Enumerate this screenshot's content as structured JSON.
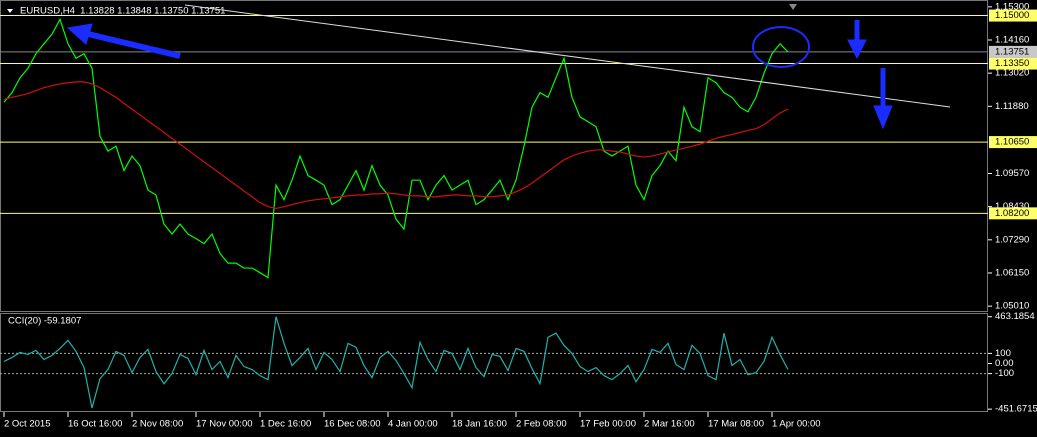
{
  "chart_data": [
    {
      "type": "line",
      "title": "EURUSD,H4  1.13828 1.13848 1.13750 1.13751",
      "categories": [
        "2 Oct 2015",
        null,
        null,
        null,
        null,
        null,
        null,
        null,
        "16 Oct 16:00",
        null,
        null,
        null,
        null,
        null,
        null,
        null,
        "2 Nov 08:00",
        null,
        null,
        null,
        null,
        null,
        null,
        null,
        "17 Nov 00:00",
        null,
        null,
        null,
        null,
        null,
        null,
        null,
        "1 Dec 16:00",
        null,
        null,
        null,
        null,
        null,
        null,
        null,
        "16 Dec 08:00",
        null,
        null,
        null,
        null,
        null,
        null,
        null,
        "4 Jan 00:00",
        null,
        null,
        null,
        null,
        null,
        null,
        null,
        "18 Jan 16:00",
        null,
        null,
        null,
        null,
        null,
        null,
        null,
        "2 Feb 08:00",
        null,
        null,
        null,
        null,
        null,
        null,
        null,
        "17 Feb 00:00",
        null,
        null,
        null,
        null,
        null,
        null,
        null,
        "2 Mar 16:00",
        null,
        null,
        null,
        null,
        null,
        null,
        null,
        "17 Mar 08:00",
        null,
        null,
        null,
        null,
        null,
        null,
        null,
        "1 Apr 00:00",
        null,
        null
      ],
      "series": [
        {
          "color": "#00ff00",
          "values": [
            1.1202,
            1.1235,
            1.1286,
            1.1319,
            1.1369,
            1.1403,
            1.1436,
            1.1487,
            1.1403,
            1.1353,
            1.1369,
            1.1319,
            1.1085,
            1.1034,
            1.1051,
            1.0967,
            1.1017,
            1.0984,
            1.09,
            1.0883,
            1.0783,
            1.0749,
            1.0783,
            1.0749,
            1.0733,
            1.0716,
            1.0749,
            1.0682,
            1.0649,
            1.0649,
            1.0632,
            1.0632,
            1.0616,
            1.0599,
            1.0917,
            1.0867,
            1.0934,
            1.1017,
            1.095,
            1.0934,
            1.0917,
            1.085,
            1.0867,
            1.0917,
            1.0967,
            1.09,
            1.0984,
            1.0917,
            1.0883,
            1.08,
            1.0766,
            1.0934,
            1.0934,
            1.0867,
            1.0917,
            1.095,
            1.09,
            1.0917,
            1.0934,
            1.085,
            1.0867,
            1.09,
            1.0934,
            1.0867,
            1.0934,
            1.1051,
            1.1185,
            1.1235,
            1.1219,
            1.1286,
            1.1353,
            1.1219,
            1.1152,
            1.1135,
            1.1118,
            1.1034,
            1.1017,
            1.1034,
            1.1051,
            1.0917,
            1.0867,
            1.095,
            1.0984,
            1.1034,
            1.1001,
            1.1185,
            1.1118,
            1.1101,
            1.1286,
            1.1269,
            1.1235,
            1.1219,
            1.1185,
            1.1169,
            1.1219,
            1.1302,
            1.1369,
            1.1403,
            1.1375
          ]
        },
        {
          "color": "#d01010",
          "values": [
            1.1212,
            1.1219,
            1.1225,
            1.1232,
            1.1242,
            1.1252,
            1.1259,
            1.1265,
            1.1269,
            1.1272,
            1.1272,
            1.1265,
            1.1252,
            1.1235,
            1.1219,
            1.1198,
            1.1178,
            1.1158,
            1.1138,
            1.1118,
            1.1098,
            1.1078,
            1.1058,
            1.1038,
            1.1017,
            1.0997,
            1.0977,
            1.0957,
            1.0937,
            1.0917,
            1.0897,
            1.0877,
            1.0857,
            1.0843,
            1.0837,
            1.0843,
            1.085,
            1.0857,
            1.0863,
            1.0867,
            1.087,
            1.0873,
            1.0877,
            1.088,
            1.0883,
            1.0883,
            1.0887,
            1.0887,
            1.089,
            1.0887,
            1.0883,
            1.088,
            1.088,
            1.0877,
            1.0877,
            1.088,
            1.0883,
            1.0883,
            1.088,
            1.088,
            1.0877,
            1.0877,
            1.088,
            1.0883,
            1.0894,
            1.0907,
            1.0924,
            1.0944,
            1.0964,
            1.0984,
            1.1004,
            1.1017,
            1.1027,
            1.1034,
            1.1038,
            1.1038,
            1.1034,
            1.1031,
            1.1024,
            1.1017,
            1.1014,
            1.1017,
            1.1024,
            1.1031,
            1.1038,
            1.1044,
            1.1051,
            1.1058,
            1.1068,
            1.1078,
            1.1085,
            1.1091,
            1.1098,
            1.1105,
            1.1111,
            1.1125,
            1.1145,
            1.1165,
            1.1178
          ]
        }
      ],
      "ylim": [
        1.04843,
        1.15535
      ],
      "yticks": [
        {
          "value": 1.153,
          "label": "1.15300"
        },
        {
          "value": 1.1416,
          "label": "1.14160"
        },
        {
          "value": 1.1302,
          "label": "1.13020"
        },
        {
          "value": 1.1188,
          "label": "1.11880"
        },
        {
          "value": 1.0957,
          "label": "1.09570"
        },
        {
          "value": 1.0843,
          "label": "1.08430"
        },
        {
          "value": 1.0729,
          "label": "1.07290"
        },
        {
          "value": 1.0615,
          "label": "1.06150"
        },
        {
          "value": 1.0501,
          "label": "1.05010"
        }
      ],
      "levels": [
        {
          "value": 1.15,
          "label": "1.15000"
        },
        {
          "value": 1.1335,
          "label": "1.13350"
        },
        {
          "value": 1.1065,
          "label": "1.10650"
        },
        {
          "value": 1.082,
          "label": "1.08200"
        }
      ],
      "level_color": "#ffff66",
      "last_price": {
        "value": 1.13751,
        "label": "1.13751"
      }
    },
    {
      "type": "line",
      "title": "CCI(20) -59.1807",
      "series": [
        {
          "color": "#20b2aa",
          "values": [
            20,
            60,
            110,
            90,
            130,
            40,
            80,
            150,
            230,
            120,
            -40,
            -440,
            -150,
            -60,
            120,
            80,
            -90,
            60,
            140,
            -80,
            -200,
            -100,
            90,
            50,
            -110,
            130,
            -60,
            20,
            -140,
            80,
            -30,
            -60,
            -120,
            -160,
            463,
            200,
            -20,
            60,
            150,
            -60,
            110,
            40,
            -80,
            200,
            160,
            -20,
            -140,
            60,
            120,
            30,
            -100,
            -240,
            210,
            40,
            -80,
            130,
            100,
            -60,
            150,
            -40,
            -130,
            90,
            70,
            -70,
            150,
            120,
            -50,
            -200,
            260,
            300,
            180,
            100,
            -30,
            -80,
            -40,
            -120,
            -160,
            -100,
            -20,
            -180,
            -60,
            140,
            110,
            200,
            -10,
            -60,
            180,
            100,
            -120,
            -160,
            300,
            -20,
            40,
            -110,
            -90,
            20,
            260,
            90,
            -59.1807
          ]
        }
      ],
      "ylim": [
        -480,
        500
      ],
      "yticks": [
        463.1854,
        100,
        {
          "value": 0,
          "label": "0.00"
        },
        -100,
        -451.6715
      ],
      "levels": [
        100,
        -100
      ]
    }
  ]
}
